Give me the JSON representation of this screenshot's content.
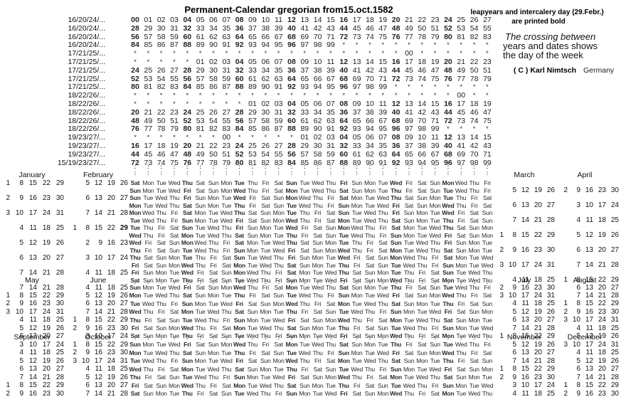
{
  "title": "Permanent-Calendar gregorian from15.oct.1582",
  "legend": {
    "leapyears_line1": "leapyears and intercalery day (29.Febr.)",
    "leapyears_line2": "are printed bold",
    "crossing_line1": "The crossing between",
    "crossing_line2": "years and dates shows",
    "crossing_line3": "the day of the week",
    "copyright": "( C ) Karl Nimtsch",
    "country": "Germany"
  },
  "century_table": {
    "rows": [
      {
        "label": "16/20/24/...",
        "cells": "00 01 02 03 04 05 06 07 08 09 10 11 12 13 14 15 16 17 18 19 20 21 22 23 24 25 26 27"
      },
      {
        "label": "16/20/24/...",
        "cells": "28 29 30 31 32 33 34 35 36 37 38 39 40 41 42 43 44 45 46 47 48 49 50 51 52 53 54 55"
      },
      {
        "label": "16/20/24/...",
        "cells": "56 57 58 59 60 61 62 63 64 65 66 67 68 69 70 71 72 73 74 75 76 77 78 79 80 81 82 83"
      },
      {
        "label": "16/20/24/...",
        "cells": "84 85 86 87 88 89 90 91 92 93 94 95 96 97 98 99 * * * * * * * * * * * *"
      },
      {
        "label": "17/21/25/...",
        "no_bold_00": true,
        "cells": "* * * * * * * * * * * * * * * * * * * * * 00 * * * * * *"
      },
      {
        "label": "17/21/25/...",
        "cells": "* * * * * 01 02 03 04 05 06 07 08 09 10 11 12 13 14 15 16 17 18 19 20 21 22 23"
      },
      {
        "label": "17/21/25/...",
        "cells": "24 25 26 27 28 29 30 31 32 33 34 35 36 37 38 39 40 41 42 43 44 45 46 47 48 49 50 51"
      },
      {
        "label": "17/21/25/...",
        "cells": "52 53 54 55 56 57 58 59 60 61 62 63 64 65 66 67 68 69 70 71 72 73 74 75 76 77 78 79"
      },
      {
        "label": "17/21/25/...",
        "cells": "80 81 82 83 84 85 86 87 88 89 90 91 92 93 94 95 96 97 98 99 * * * * * * * *"
      },
      {
        "label": "18/22/26/...",
        "no_bold_00": true,
        "cells": "* * * * * * * * * * * * * * * * * * * * * * * * * 00 * *"
      },
      {
        "label": "18/22/26/...",
        "cells": "* * * * * * * * * 01 02 03 04 05 06 07 08 09 10 11 12 13 14 15 16 17 18 19"
      },
      {
        "label": "18/22/26/...",
        "cells": "20 21 22 23 24 25 26 27 28 29 30 31 32 33 34 35 36 37 38 39 40 41 42 43 44 45 46 47"
      },
      {
        "label": "18/22/26/...",
        "cells": "48 49 50 51 52 53 54 55 56 57 58 59 60 61 62 63 64 65 66 67 68 69 70 71 72 73 74 75"
      },
      {
        "label": "18/22/26/...",
        "cells": "76 77 78 79 80 81 82 83 84 85 86 87 88 89 90 91 92 93 94 95 96 97 98 99 * * * *"
      },
      {
        "label": "19/23/27/...",
        "no_bold_00": true,
        "cells": "* * * * * * * 00 * * * * * 01 02 03 04 05 06 07 08 09 10 11 12 13 14 15"
      },
      {
        "label": "19/23/27/...",
        "cells": "16 17 18 19 20 21 22 23 24 25 26 27 28 29 30 31 32 33 34 35 36 37 38 39 40 41 42 43"
      },
      {
        "label": "19/23/27/...",
        "cells": "44 45 46 47 48 49 50 51 52 53 54 55 56 57 58 59 60 61 62 63 64 65 66 67 68 69 70 71"
      },
      {
        "label": "15/19/23/27/...",
        "cells": "72 73 74 75 76 77 78 79 80 81 82 83 84 85 86 87 88 89 90 91 92 93 94 95 96 97 98 99"
      }
    ]
  },
  "connector_glyph": ":",
  "blocks": [
    {
      "interleaved": true,
      "left_months": [
        {
          "name": "January",
          "rows": [
            [
              1,
              8,
              15,
              22,
              29
            ],
            [
              2,
              9,
              16,
              23,
              30
            ],
            [
              3,
              10,
              17,
              24,
              31
            ],
            [
              4,
              11,
              18,
              25
            ],
            [
              5,
              12,
              19,
              26
            ],
            [
              6,
              13,
              20,
              27
            ],
            [
              7,
              14,
              21,
              28
            ]
          ]
        },
        {
          "name": "February",
          "bold_date": 29,
          "rows": [
            [
              5,
              12,
              19,
              26
            ],
            [
              6,
              13,
              20,
              27
            ],
            [
              7,
              14,
              21,
              28
            ],
            [
              1,
              8,
              15,
              22,
              29
            ],
            [
              2,
              9,
              16,
              23
            ],
            [
              3,
              10,
              17,
              24
            ],
            [
              4,
              11,
              18,
              25
            ]
          ]
        }
      ],
      "right_months": [
        {
          "name": "March",
          "rows": [
            [
              5,
              12,
              19,
              26
            ],
            [
              6,
              13,
              20,
              27
            ],
            [
              7,
              14,
              21,
              28
            ],
            [
              1,
              8,
              15,
              22,
              29
            ],
            [
              2,
              9,
              16,
              23,
              30
            ],
            [
              3,
              10,
              17,
              24,
              31
            ],
            [
              4,
              11,
              18,
              25
            ]
          ]
        },
        {
          "name": "April",
          "rows": [
            [
              2,
              9,
              16,
              23,
              30
            ],
            [
              3,
              10,
              17,
              24
            ],
            [
              4,
              11,
              18,
              25
            ],
            [
              5,
              12,
              19,
              26
            ],
            [
              6,
              13,
              20,
              27
            ],
            [
              7,
              14,
              21,
              28
            ],
            [
              1,
              8,
              15,
              22,
              29
            ]
          ]
        }
      ],
      "grid_rows": [
        "Sat Mon Tue Wed Thu Sat Sun Mon Tue Thu Fri Sat Sun Tue Wed Thu Fri Sun Mon Tue Wed Fri Sat Sun Mon Wed Thu Fri",
        "Sun Mon Tue Wed Fri Sat Sun Mon Wed Thu Fri Sat Mon Tue Wed Thu Sat Sun Mon Tue Thu Fri Sat Sun Tue Wed Thu Fri",
        "Sun Tue Wed Thu Fri Sun Mon Tue Wed Fri Sat Sun Mon Wed Thu Fri Sat Mon Tue Wed Thu Sat Sun Mon Tue Thu Fri Sat",
        "Mon Tue Wed Thu Sat Sun Mon Tue Thu Fri Sat Sun Tue Wed Thu Fri Sun Mon Tue Wed Fri Sat Sun Mon Wed Thu Fri Sat",
        "Mon Wed Thu Fri Sat Mon Tue Wed Thu Sat Sun Mon Tue Thu Fri Sat Sun Tue Wed Thu Fri Sun Mon Tue Wed Fri Sat Sun",
        "Tue Wed Thu Fri Sun Mon Tue Wed Fri Sat Sun Mon Wed Thu Fri Sat Mon Tue Wed Thu Sat Sun Mon Tue Thu Fri Sat Sun",
        "Tue Thu Fri Sat Sun Tue Wed Thu Fri Sun Mon Tue Wed Fri Sat Sun Mon Wed Thu Fri Sat Mon Tue Wed Thu Sat Sun Mon",
        "Wed Thu Fri Sat Mon Tue Wed Thu Sat Sun Mon Tue Thu Fri Sat Sun Tue Wed Thu Fri Sun Mon Tue Wed Fri Sat Sun Mon",
        "Wed Fri Sat Sun Mon Wed Thu Fri Sat Mon Tue Wed Thu Sat Sun Mon Tue Thu Fri Sat Sun Tue Wed Thu Fri Sun Mon Tue",
        "Thu Fri Sat Sun Tue Wed Thu Fri Sun Mon Tue Wed Fri Sat Sun Mon Wed Thu Fri Sat Mon Tue Wed Thu Sat Sun Mon Tue",
        "Thu Sat Sun Mon Tue Thu Fri Sat Sun Tue Wed Thu Fri Sun Mon Tue Wed Fri Sat Sun Mon Wed Thu Fri Sat Mon Tue Wed",
        "Fri Sat Sun Mon Wed Thu Fri Sat Mon Tue Wed Thu Sat Sun Mon Tue Thu Fri Sat Sun Tue Wed Thu Fri Sun Mon Tue Wed",
        "Fri Sun Mon Tue Wed Fri Sat Sun Mon Wed Thu Fri Sat Mon Tue Wed Thu Sat Sun Mon Tue Thu Fri Sat Sun Tue Wed Thu",
        "Sat Sun Mon Tue Thu Fri Sat Sun Tue Wed Thu Fri Sun Mon Tue Wed Fri Sat Sun Mon Wed Thu Fri Sat Mon Tue Wed Thu"
      ]
    },
    {
      "interleaved": false,
      "left_months": [
        {
          "name": "May",
          "rows": [
            [
              7,
              14,
              21,
              28
            ],
            [
              1,
              8,
              15,
              22,
              29
            ],
            [
              2,
              9,
              16,
              23,
              30
            ],
            [
              3,
              10,
              17,
              24,
              31
            ],
            [
              4,
              11,
              18,
              25
            ],
            [
              5,
              12,
              19,
              26
            ],
            [
              6,
              13,
              20,
              27
            ]
          ]
        },
        {
          "name": "June",
          "rows": [
            [
              4,
              11,
              18,
              25
            ],
            [
              5,
              12,
              19,
              26
            ],
            [
              6,
              13,
              20,
              27
            ],
            [
              7,
              14,
              21,
              28
            ],
            [
              1,
              8,
              15,
              22,
              29
            ],
            [
              2,
              9,
              16,
              23,
              30
            ],
            [
              3,
              10,
              17,
              24
            ]
          ]
        }
      ],
      "right_months": [
        {
          "name": "July",
          "rows": [
            [
              2,
              9,
              16,
              23,
              30
            ],
            [
              3,
              10,
              17,
              24,
              31
            ],
            [
              4,
              11,
              18,
              25
            ],
            [
              5,
              12,
              19,
              26
            ],
            [
              6,
              13,
              20,
              27
            ],
            [
              7,
              14,
              21,
              28
            ],
            [
              1,
              8,
              15,
              22,
              29
            ]
          ]
        },
        {
          "name": "August",
          "rows": [
            [
              6,
              13,
              20,
              27
            ],
            [
              7,
              14,
              21,
              28
            ],
            [
              1,
              8,
              15,
              22,
              29
            ],
            [
              2,
              9,
              16,
              23,
              30
            ],
            [
              3,
              10,
              17,
              24,
              31
            ],
            [
              4,
              11,
              18,
              25
            ],
            [
              5,
              12,
              19,
              26
            ]
          ]
        }
      ],
      "grid_rows": [
        "Sun Mon Tue Wed Fri Sat Sun Mon Wed Thu Fri Sat Mon Tue Wed Thu Sat Sun Mon Tue Thu Fri Sat Sun Tue Wed Thu Fri",
        "Mon Tue Wed Thu Sat Sun Mon Tue Thu Fri Sat Sun Tue Wed Thu Fri Sun Mon Tue Wed Fri Sat Sun Mon Wed Thu Fri Sat",
        "Tue Wed Thu Fri Sun Mon Tue Wed Fri Sat Sun Mon Wed Thu Fri Sat Mon Tue Wed Thu Sat Sun Mon Tue Thu Fri Sat Sun",
        "Wed Thu Fri Sat Mon Tue Wed Thu Sat Sun Mon Tue Thu Fri Sat Sun Tue Wed Thu Fri Sun Mon Tue Wed Fri Sat Sun Mon",
        "Thu Fri Sat Sun Tue Wed Thu Fri Sun Mon Tue Wed Fri Sat Sun Mon Wed Thu Fri Sat Mon Tue Wed Thu Sat Sun Mon Tue",
        "Fri Sat Sun Mon Wed Thu Fri Sat Mon Tue Wed Thu Sat Sun Mon Tue Thu Fri Sat Sun Tue Wed Thu Fri Sun Mon Tue Wed",
        "Sat Sun Mon Tue Thu Fri Sat Sun Tue Wed Thu Fri Sun Mon Tue Wed Fri Sat Sun Mon Wed Thu Fri Sat Mon Tue Wed Thu"
      ]
    },
    {
      "interleaved": false,
      "left_months": [
        {
          "name": "September",
          "rows": [
            [
              3,
              10,
              17,
              24
            ],
            [
              4,
              11,
              18,
              25
            ],
            [
              5,
              12,
              19,
              26
            ],
            [
              6,
              13,
              20,
              27
            ],
            [
              7,
              14,
              21,
              28
            ],
            [
              1,
              8,
              15,
              22,
              29
            ],
            [
              2,
              9,
              16,
              23,
              30
            ]
          ]
        },
        {
          "name": "October",
          "rows": [
            [
              1,
              8,
              15,
              22,
              29
            ],
            [
              2,
              9,
              16,
              23,
              30
            ],
            [
              3,
              10,
              17,
              24,
              31
            ],
            [
              4,
              11,
              18,
              25
            ],
            [
              5,
              12,
              19,
              26
            ],
            [
              6,
              13,
              20,
              27
            ],
            [
              7,
              14,
              21,
              28
            ]
          ]
        }
      ],
      "right_months": [
        {
          "name": "November",
          "rows": [
            [
              5,
              12,
              19,
              26
            ],
            [
              6,
              13,
              20,
              27
            ],
            [
              7,
              14,
              21,
              28
            ],
            [
              1,
              8,
              15,
              22,
              29
            ],
            [
              2,
              9,
              16,
              23,
              30
            ],
            [
              3,
              10,
              17,
              24
            ],
            [
              4,
              11,
              18,
              25
            ]
          ]
        },
        {
          "name": "December",
          "rows": [
            [
              3,
              10,
              17,
              24,
              31
            ],
            [
              4,
              11,
              18,
              25
            ],
            [
              5,
              12,
              19,
              26
            ],
            [
              6,
              13,
              20,
              27
            ],
            [
              7,
              14,
              21,
              28
            ],
            [
              1,
              8,
              15,
              22,
              29
            ],
            [
              2,
              9,
              16,
              23,
              30
            ]
          ]
        }
      ],
      "grid_rows": [
        "Sun Mon Tue Wed Fri Sat Sun Mon Wed Thu Fri Sat Mon Tue Wed Thu Sat Sun Mon Tue Thu Fri Sat Sun Tue Wed Thu Fri",
        "Mon Tue Wed Thu Sat Sun Mon Tue Thu Fri Sat Sun Tue Wed Thu Fri Sun Mon Tue Wed Fri Sat Sun Mon Wed Thu Fri Sat",
        "Tue Wed Thu Fri Sun Mon Tue Wed Fri Sat Sun Mon Wed Thu Fri Sat Mon Tue Wed Thu Sat Sun Mon Tue Thu Fri Sat Sun",
        "Wed Thu Fri Sat Mon Tue Wed Thu Sat Sun Mon Tue Thu Fri Sat Sun Tue Wed Thu Fri Sun Mon Tue Wed Fri Sat Sun Mon",
        "Thu Fri Sat Sun Tue Wed Thu Fri Sun Mon Tue Wed Fri Sat Sun Mon Wed Thu Fri Sat Mon Tue Wed Thu Sat Sun Mon Tue",
        "Fri Sat Sun Mon Wed Thu Fri Sat Mon Tue Wed Thu Sat Sun Mon Tue Thu Fri Sat Sun Tue Wed Thu Fri Sun Mon Tue Wed",
        "Sat Sun Mon Tue Thu Fri Sat Sun Tue Wed Thu Fri Sun Mon Tue Wed Fri Sat Sun Mon Wed Thu Fri Sat Mon Tue Wed Thu"
      ]
    }
  ]
}
